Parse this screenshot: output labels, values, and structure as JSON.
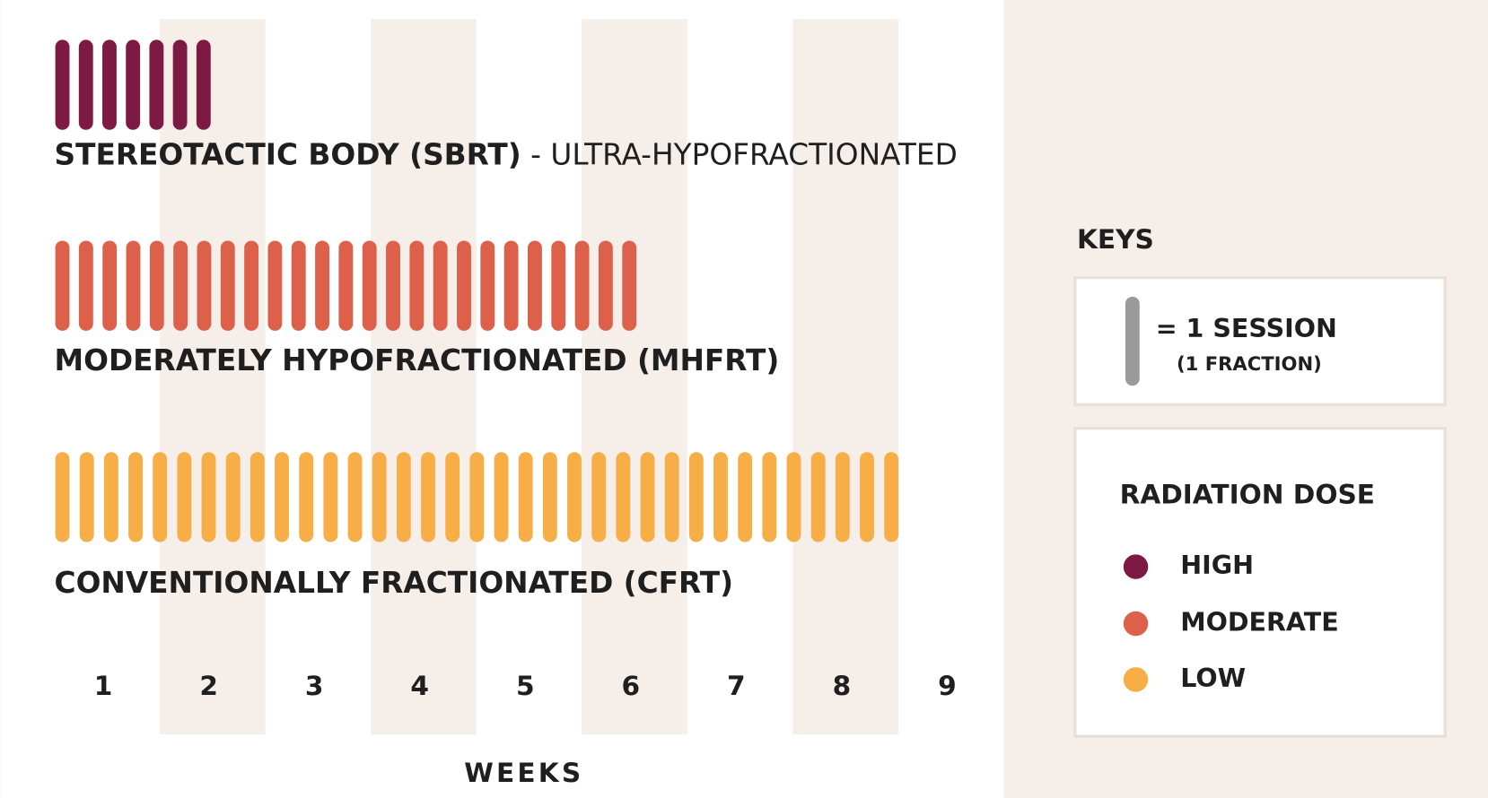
{
  "rows": [
    {
      "label_bold": "STEREOTACTIC BODY (SBRT)",
      "label_rest": "- ULTRA-HYPOFRACTIONATED",
      "sessions": 7,
      "color": "#7d1a43"
    },
    {
      "label_bold": "MODERATELY HYPOFRACTIONATED (MHFRT)",
      "sessions": 25,
      "color": "#dc604a"
    },
    {
      "label_bold": "CONVENTIONALLY FRACTIONATED (CFRT)",
      "sessions": 35,
      "color": "#f7ae47"
    }
  ],
  "weeks": [
    1,
    2,
    3,
    4,
    5,
    6,
    7,
    8,
    9
  ],
  "x_axis_label": "WEEKS",
  "keys": {
    "title": "KEYS",
    "session": "= 1 SESSION",
    "fraction": "(1 FRACTION)",
    "session_color": "#9a9a9a",
    "dose_title": "RADIATION DOSE",
    "doses": [
      {
        "label": "HIGH",
        "color": "#7d1a43"
      },
      {
        "label": "MODERATE",
        "color": "#dc604a"
      },
      {
        "label": "LOW",
        "color": "#f7ae47"
      }
    ]
  }
}
